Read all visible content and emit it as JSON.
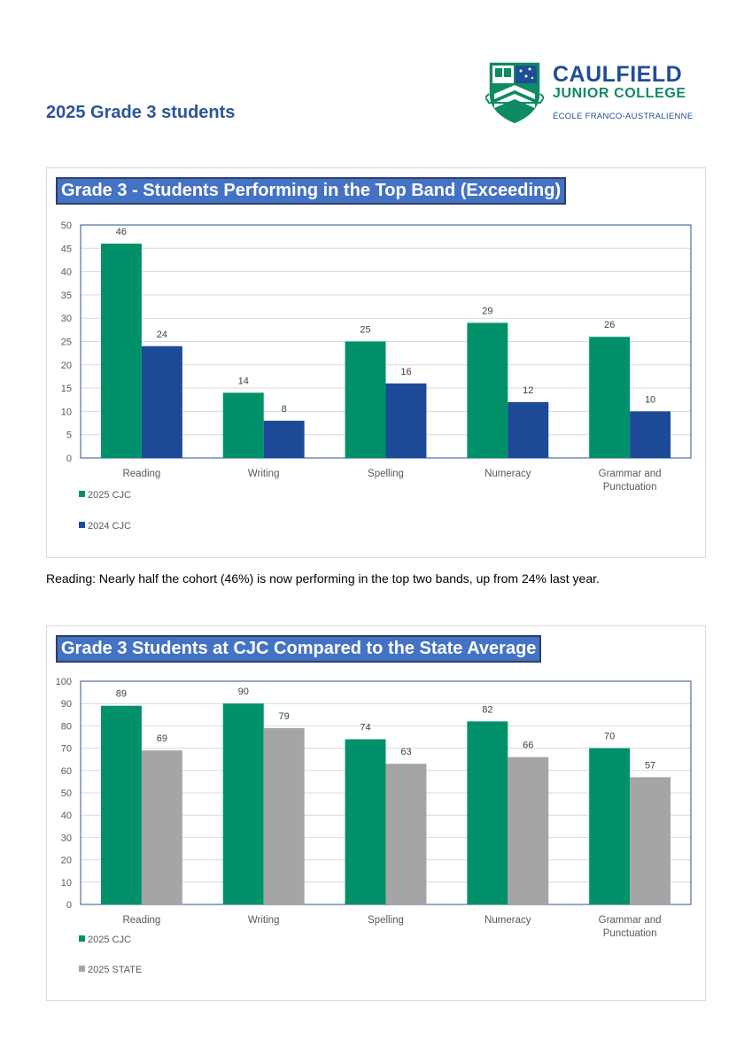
{
  "page": {
    "heading": "2025 Grade 3 students",
    "caption": "Reading: Nearly half the cohort (46%) is now performing in the top two bands, up from 24% last year."
  },
  "logo": {
    "line1": "CAULFIELD",
    "line2": "JUNIOR COLLEGE",
    "line3": "ÉCOLE FRANCO-AUSTRALIENNE",
    "colors": {
      "blue": "#1f4e95",
      "green": "#0e8a64"
    }
  },
  "chart_data": [
    {
      "type": "bar",
      "title": "Grade 3 - Students Performing in the Top Band (Exceeding)",
      "categories": [
        "Reading",
        "Writing",
        "Spelling",
        "Numeracy",
        "Grammar and Punctuation"
      ],
      "series": [
        {
          "name": "2025 CJC",
          "values": [
            46,
            14,
            25,
            29,
            26
          ],
          "color": "#00916a"
        },
        {
          "name": "2024 CJC",
          "values": [
            24,
            8,
            16,
            12,
            10
          ],
          "color": "#1c4a96"
        }
      ],
      "ylim": [
        0,
        50
      ],
      "ytick_step": 5,
      "grid": true,
      "legend": "bottom-left"
    },
    {
      "type": "bar",
      "title": "Grade 3 Students at CJC Compared to the State Average",
      "categories": [
        "Reading",
        "Writing",
        "Spelling",
        "Numeracy",
        "Grammar and Punctuation"
      ],
      "series": [
        {
          "name": "2025 CJC",
          "values": [
            89,
            90,
            74,
            82,
            70
          ],
          "color": "#00916a"
        },
        {
          "name": "2025 STATE",
          "values": [
            69,
            79,
            63,
            66,
            57
          ],
          "color": "#a5a5a5"
        }
      ],
      "ylim": [
        0,
        100
      ],
      "ytick_step": 10,
      "grid": true,
      "legend": "bottom-left"
    }
  ]
}
